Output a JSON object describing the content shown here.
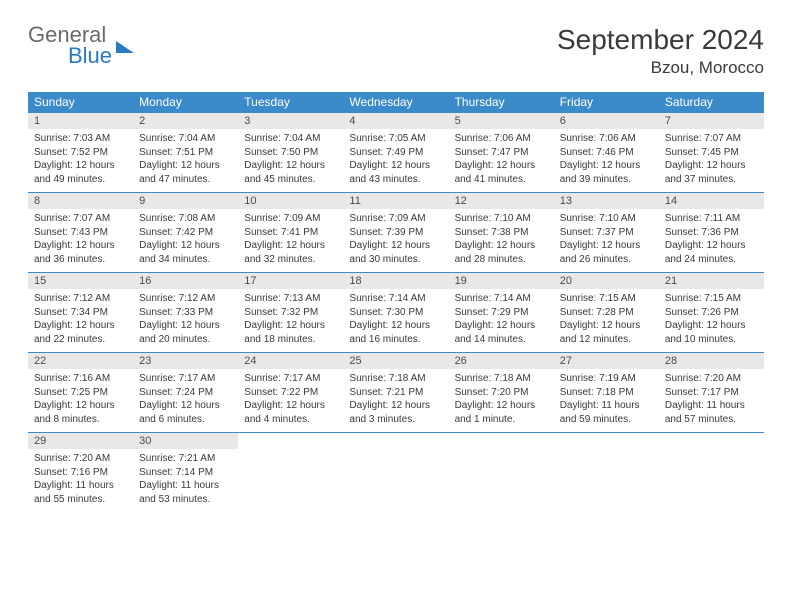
{
  "logo": {
    "line1": "General",
    "line2": "Blue"
  },
  "title": "September 2024",
  "location": "Bzou, Morocco",
  "colors": {
    "header_bg": "#3b8bca",
    "header_text": "#ffffff",
    "daynum_bg": "#e8e8e8",
    "rule": "#3b8bca",
    "text": "#3a3a3a",
    "logo_blue": "#2a7ac0",
    "logo_gray": "#6b6b6b",
    "background": "#ffffff"
  },
  "fonts": {
    "title_pt": 28,
    "location_pt": 17,
    "dow_pt": 12,
    "daynum_pt": 11,
    "body_pt": 10
  },
  "dow": [
    "Sunday",
    "Monday",
    "Tuesday",
    "Wednesday",
    "Thursday",
    "Friday",
    "Saturday"
  ],
  "weeks": [
    [
      {
        "num": "1",
        "sunrise": "Sunrise: 7:03 AM",
        "sunset": "Sunset: 7:52 PM",
        "day1": "Daylight: 12 hours",
        "day2": "and 49 minutes."
      },
      {
        "num": "2",
        "sunrise": "Sunrise: 7:04 AM",
        "sunset": "Sunset: 7:51 PM",
        "day1": "Daylight: 12 hours",
        "day2": "and 47 minutes."
      },
      {
        "num": "3",
        "sunrise": "Sunrise: 7:04 AM",
        "sunset": "Sunset: 7:50 PM",
        "day1": "Daylight: 12 hours",
        "day2": "and 45 minutes."
      },
      {
        "num": "4",
        "sunrise": "Sunrise: 7:05 AM",
        "sunset": "Sunset: 7:49 PM",
        "day1": "Daylight: 12 hours",
        "day2": "and 43 minutes."
      },
      {
        "num": "5",
        "sunrise": "Sunrise: 7:06 AM",
        "sunset": "Sunset: 7:47 PM",
        "day1": "Daylight: 12 hours",
        "day2": "and 41 minutes."
      },
      {
        "num": "6",
        "sunrise": "Sunrise: 7:06 AM",
        "sunset": "Sunset: 7:46 PM",
        "day1": "Daylight: 12 hours",
        "day2": "and 39 minutes."
      },
      {
        "num": "7",
        "sunrise": "Sunrise: 7:07 AM",
        "sunset": "Sunset: 7:45 PM",
        "day1": "Daylight: 12 hours",
        "day2": "and 37 minutes."
      }
    ],
    [
      {
        "num": "8",
        "sunrise": "Sunrise: 7:07 AM",
        "sunset": "Sunset: 7:43 PM",
        "day1": "Daylight: 12 hours",
        "day2": "and 36 minutes."
      },
      {
        "num": "9",
        "sunrise": "Sunrise: 7:08 AM",
        "sunset": "Sunset: 7:42 PM",
        "day1": "Daylight: 12 hours",
        "day2": "and 34 minutes."
      },
      {
        "num": "10",
        "sunrise": "Sunrise: 7:09 AM",
        "sunset": "Sunset: 7:41 PM",
        "day1": "Daylight: 12 hours",
        "day2": "and 32 minutes."
      },
      {
        "num": "11",
        "sunrise": "Sunrise: 7:09 AM",
        "sunset": "Sunset: 7:39 PM",
        "day1": "Daylight: 12 hours",
        "day2": "and 30 minutes."
      },
      {
        "num": "12",
        "sunrise": "Sunrise: 7:10 AM",
        "sunset": "Sunset: 7:38 PM",
        "day1": "Daylight: 12 hours",
        "day2": "and 28 minutes."
      },
      {
        "num": "13",
        "sunrise": "Sunrise: 7:10 AM",
        "sunset": "Sunset: 7:37 PM",
        "day1": "Daylight: 12 hours",
        "day2": "and 26 minutes."
      },
      {
        "num": "14",
        "sunrise": "Sunrise: 7:11 AM",
        "sunset": "Sunset: 7:36 PM",
        "day1": "Daylight: 12 hours",
        "day2": "and 24 minutes."
      }
    ],
    [
      {
        "num": "15",
        "sunrise": "Sunrise: 7:12 AM",
        "sunset": "Sunset: 7:34 PM",
        "day1": "Daylight: 12 hours",
        "day2": "and 22 minutes."
      },
      {
        "num": "16",
        "sunrise": "Sunrise: 7:12 AM",
        "sunset": "Sunset: 7:33 PM",
        "day1": "Daylight: 12 hours",
        "day2": "and 20 minutes."
      },
      {
        "num": "17",
        "sunrise": "Sunrise: 7:13 AM",
        "sunset": "Sunset: 7:32 PM",
        "day1": "Daylight: 12 hours",
        "day2": "and 18 minutes."
      },
      {
        "num": "18",
        "sunrise": "Sunrise: 7:14 AM",
        "sunset": "Sunset: 7:30 PM",
        "day1": "Daylight: 12 hours",
        "day2": "and 16 minutes."
      },
      {
        "num": "19",
        "sunrise": "Sunrise: 7:14 AM",
        "sunset": "Sunset: 7:29 PM",
        "day1": "Daylight: 12 hours",
        "day2": "and 14 minutes."
      },
      {
        "num": "20",
        "sunrise": "Sunrise: 7:15 AM",
        "sunset": "Sunset: 7:28 PM",
        "day1": "Daylight: 12 hours",
        "day2": "and 12 minutes."
      },
      {
        "num": "21",
        "sunrise": "Sunrise: 7:15 AM",
        "sunset": "Sunset: 7:26 PM",
        "day1": "Daylight: 12 hours",
        "day2": "and 10 minutes."
      }
    ],
    [
      {
        "num": "22",
        "sunrise": "Sunrise: 7:16 AM",
        "sunset": "Sunset: 7:25 PM",
        "day1": "Daylight: 12 hours",
        "day2": "and 8 minutes."
      },
      {
        "num": "23",
        "sunrise": "Sunrise: 7:17 AM",
        "sunset": "Sunset: 7:24 PM",
        "day1": "Daylight: 12 hours",
        "day2": "and 6 minutes."
      },
      {
        "num": "24",
        "sunrise": "Sunrise: 7:17 AM",
        "sunset": "Sunset: 7:22 PM",
        "day1": "Daylight: 12 hours",
        "day2": "and 4 minutes."
      },
      {
        "num": "25",
        "sunrise": "Sunrise: 7:18 AM",
        "sunset": "Sunset: 7:21 PM",
        "day1": "Daylight: 12 hours",
        "day2": "and 3 minutes."
      },
      {
        "num": "26",
        "sunrise": "Sunrise: 7:18 AM",
        "sunset": "Sunset: 7:20 PM",
        "day1": "Daylight: 12 hours",
        "day2": "and 1 minute."
      },
      {
        "num": "27",
        "sunrise": "Sunrise: 7:19 AM",
        "sunset": "Sunset: 7:18 PM",
        "day1": "Daylight: 11 hours",
        "day2": "and 59 minutes."
      },
      {
        "num": "28",
        "sunrise": "Sunrise: 7:20 AM",
        "sunset": "Sunset: 7:17 PM",
        "day1": "Daylight: 11 hours",
        "day2": "and 57 minutes."
      }
    ],
    [
      {
        "num": "29",
        "sunrise": "Sunrise: 7:20 AM",
        "sunset": "Sunset: 7:16 PM",
        "day1": "Daylight: 11 hours",
        "day2": "and 55 minutes."
      },
      {
        "num": "30",
        "sunrise": "Sunrise: 7:21 AM",
        "sunset": "Sunset: 7:14 PM",
        "day1": "Daylight: 11 hours",
        "day2": "and 53 minutes."
      },
      {
        "empty": true
      },
      {
        "empty": true
      },
      {
        "empty": true
      },
      {
        "empty": true
      },
      {
        "empty": true
      }
    ]
  ]
}
